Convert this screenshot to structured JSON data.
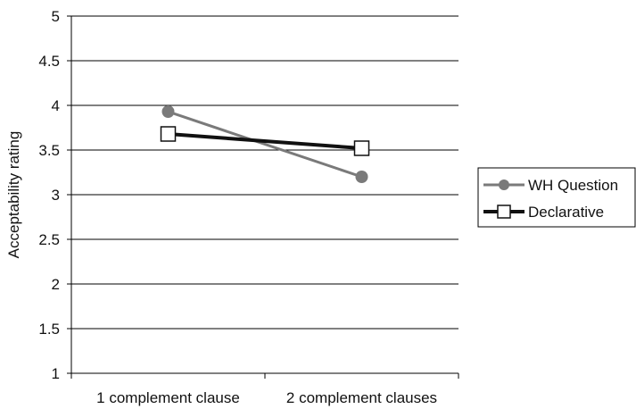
{
  "chart_data": {
    "type": "line",
    "title": "",
    "xlabel": "",
    "ylabel": "Acceptability rating",
    "categories": [
      "1 complement clause",
      "2 complement clauses"
    ],
    "ylim": [
      1,
      5
    ],
    "yticks": [
      "1",
      "1.5",
      "2",
      "2.5",
      "3",
      "3.5",
      "4",
      "4.5",
      "5"
    ],
    "grid": true,
    "legend_position": "right",
    "series": [
      {
        "name": "WH Question",
        "values": [
          3.93,
          3.2
        ],
        "color": "#7a7a7a",
        "marker": "circle"
      },
      {
        "name": "Declarative",
        "values": [
          3.68,
          3.52
        ],
        "color": "#111111",
        "marker": "square"
      }
    ]
  }
}
